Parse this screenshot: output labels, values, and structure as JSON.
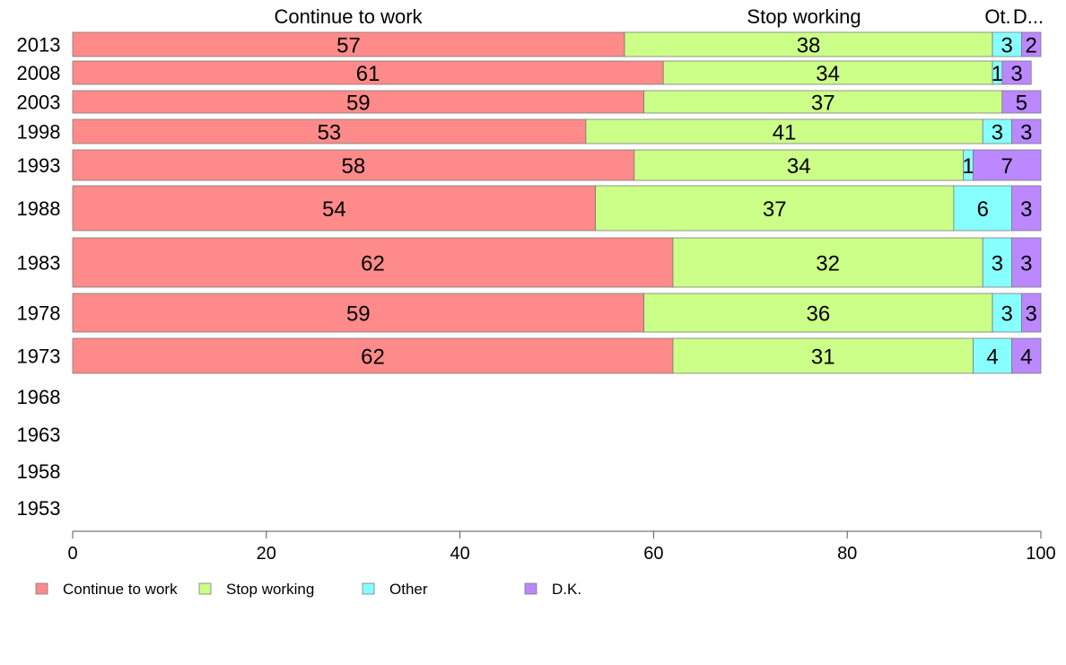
{
  "chart_data": {
    "type": "bar",
    "orientation": "horizontal",
    "stacked": true,
    "categories": [
      "2013",
      "2008",
      "2003",
      "1998",
      "1993",
      "1988",
      "1983",
      "1978",
      "1973",
      "1968",
      "1963",
      "1958",
      "1953"
    ],
    "series": [
      {
        "name": "Continue to work",
        "color": "#ff8a8a",
        "values": [
          57,
          61,
          59,
          53,
          58,
          54,
          62,
          59,
          62,
          null,
          null,
          null,
          null
        ]
      },
      {
        "name": "Stop working",
        "color": "#ccff88",
        "values": [
          38,
          34,
          37,
          41,
          34,
          37,
          32,
          36,
          31,
          null,
          null,
          null,
          null
        ]
      },
      {
        "name": "Other",
        "color": "#88ffff",
        "values": [
          3,
          1,
          0,
          3,
          1,
          6,
          3,
          3,
          4,
          null,
          null,
          null,
          null
        ]
      },
      {
        "name": "D.K.",
        "color": "#bb88ff",
        "values": [
          2,
          3,
          5,
          3,
          7,
          3,
          3,
          3,
          4,
          null,
          null,
          null,
          null
        ]
      }
    ],
    "segment_labels": [
      [
        "57",
        "38",
        "3",
        "2"
      ],
      [
        "61",
        "34",
        "1",
        "3"
      ],
      [
        "59",
        "37",
        "",
        "5"
      ],
      [
        "53",
        "41",
        "3",
        "3"
      ],
      [
        "58",
        "34",
        "1",
        "7"
      ],
      [
        "54",
        "37",
        "6",
        "3"
      ],
      [
        "62",
        "32",
        "3",
        "3"
      ],
      [
        "59",
        "36",
        "3",
        "3"
      ],
      [
        "62",
        "31",
        "4",
        "4"
      ],
      [
        "",
        "",
        "",
        ""
      ],
      [
        "",
        "",
        "",
        ""
      ],
      [
        "",
        "",
        "",
        ""
      ],
      [
        "",
        "",
        "",
        ""
      ]
    ],
    "column_headers": [
      "Continue to work",
      "Stop working",
      "Ot.",
      "D..."
    ],
    "xlim": [
      0,
      100
    ],
    "x_ticks": [
      0,
      20,
      40,
      60,
      80,
      100
    ],
    "grid": false,
    "legend_position": "bottom-left",
    "title": "",
    "xlabel": "",
    "ylabel": ""
  }
}
